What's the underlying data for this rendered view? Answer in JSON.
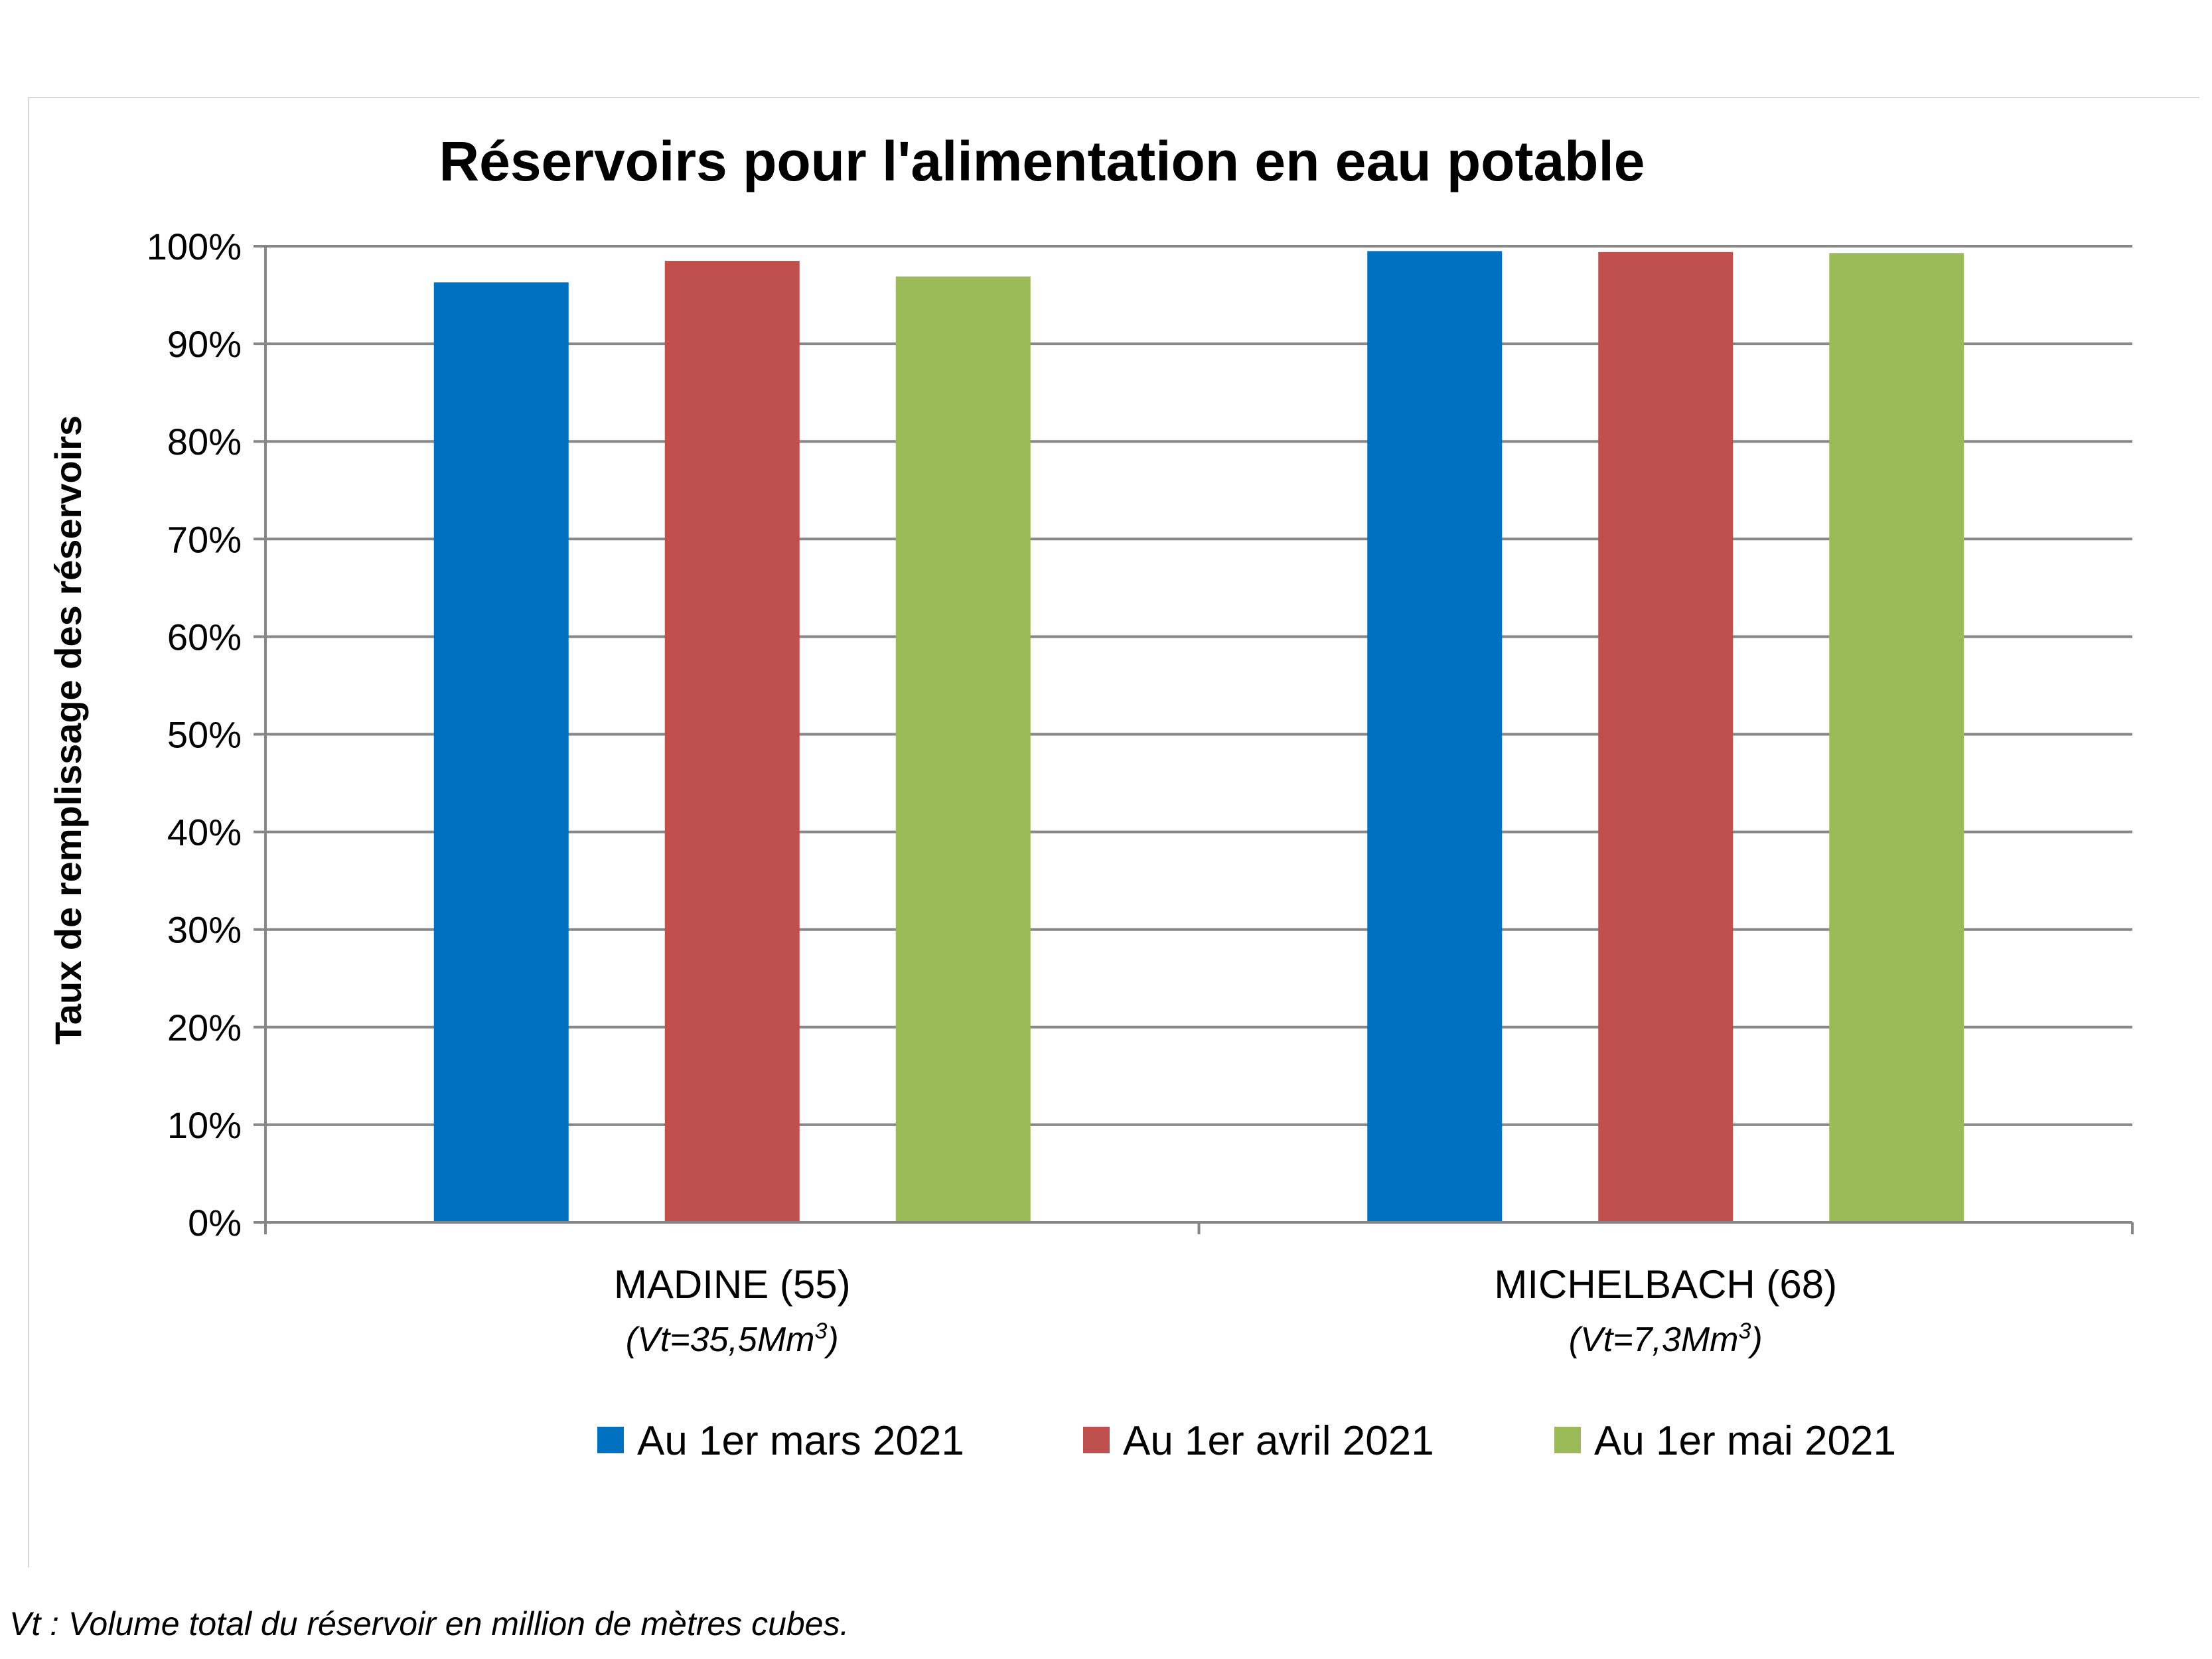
{
  "chart_data": {
    "type": "bar",
    "title": "Réservoirs pour l'alimentation en eau potable",
    "ylabel": "Taux de remplissage des réservoirs",
    "xlabel": "",
    "ylim": [
      0,
      100
    ],
    "yticks": [
      "0%",
      "10%",
      "20%",
      "30%",
      "40%",
      "50%",
      "60%",
      "70%",
      "80%",
      "90%",
      "100%"
    ],
    "grid": true,
    "legend_position": "bottom",
    "categories": [
      {
        "label": "MADINE (55)",
        "sublabel": "(Vt=35,5Mm",
        "sup": "3",
        "subclose": ")"
      },
      {
        "label": "MICHELBACH (68)",
        "sublabel": "(Vt=7,3Mm",
        "sup": "3",
        "subclose": ")"
      }
    ],
    "series": [
      {
        "name": "Au 1er mars 2021",
        "color": "#0070C0",
        "values": [
          96.3,
          99.5
        ]
      },
      {
        "name": "Au 1er avril 2021",
        "color": "#C0504D",
        "values": [
          98.5,
          99.4
        ]
      },
      {
        "name": "Au 1er mai 2021",
        "color": "#9BBB59",
        "values": [
          96.9,
          99.3
        ]
      }
    ]
  },
  "footnote": "Vt : Volume total du réservoir en million de mètres cubes."
}
